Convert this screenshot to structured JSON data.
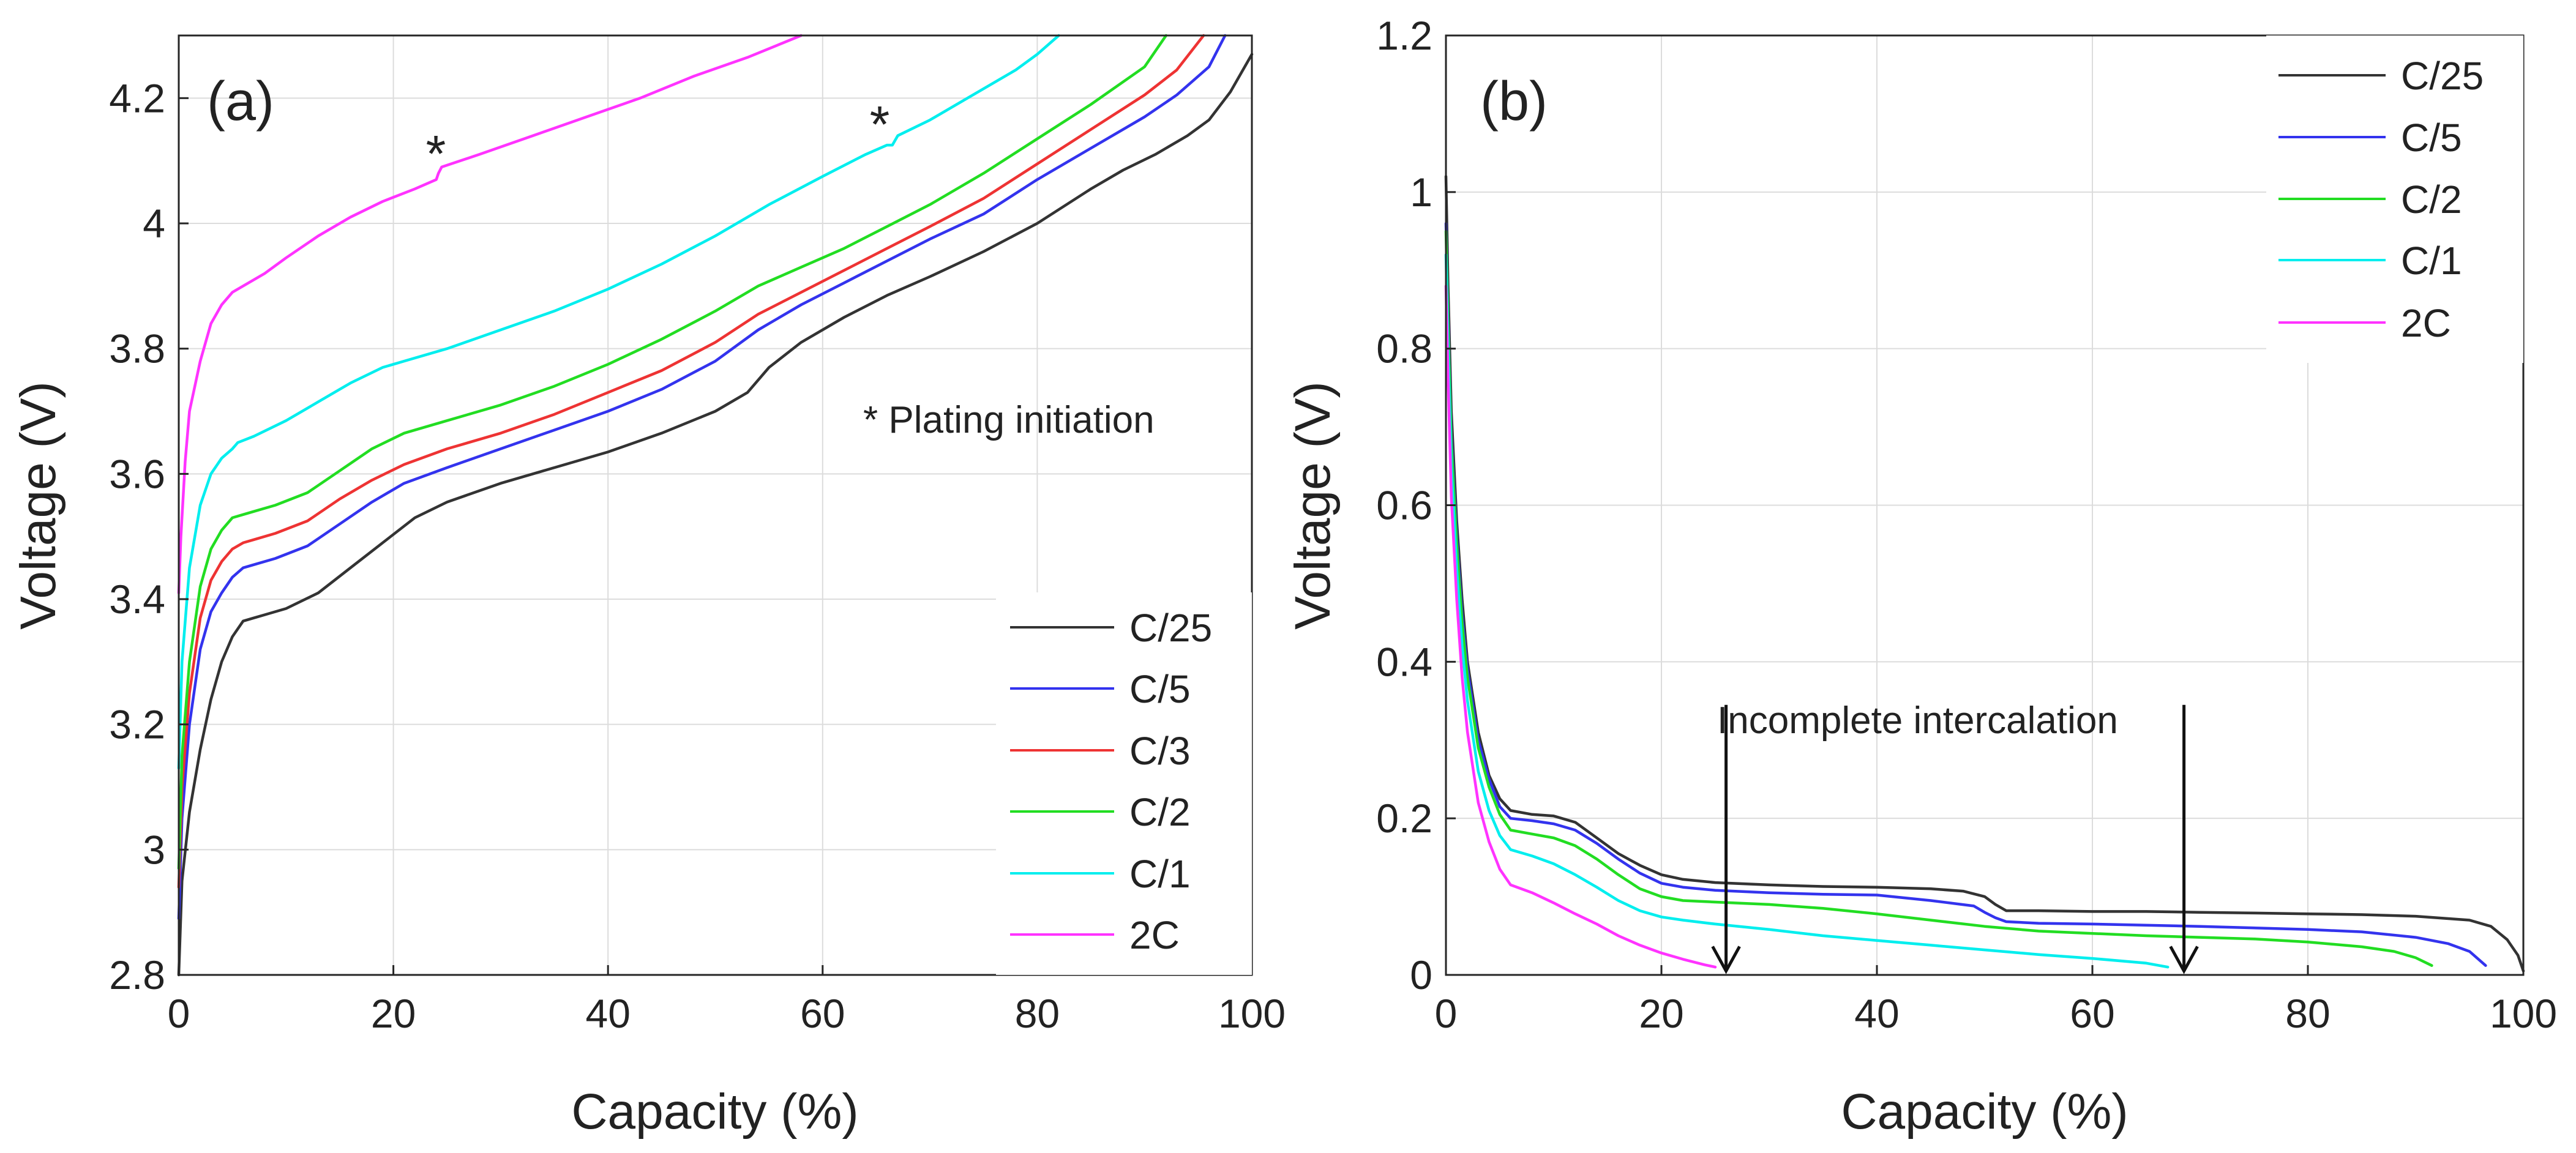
{
  "chart_data": [
    {
      "type": "line",
      "panel_label": "(a)",
      "xlabel": "Capacity (%)",
      "ylabel": "Voltage (V)",
      "xlim": [
        0,
        100
      ],
      "ylim": [
        2.8,
        4.3
      ],
      "xticks": [
        0,
        20,
        40,
        60,
        80,
        100
      ],
      "xtick_labels": [
        "0",
        "20",
        "40",
        "60",
        "80",
        "100"
      ],
      "yticks": [
        2.8,
        3.0,
        3.2,
        3.4,
        3.6,
        3.8,
        4.0,
        4.2
      ],
      "ytick_labels": [
        "2.8",
        "3",
        "3.2",
        "3.4",
        "3.6",
        "3.8",
        "4",
        "4.2"
      ],
      "grid": true,
      "legend_position": "bottom-right",
      "annotations": [
        {
          "text": "* Plating initiation",
          "x": 61.5,
          "y": 3.695
        },
        {
          "text": "*",
          "x": 24.0,
          "y": 4.11,
          "star": true
        },
        {
          "text": "*",
          "x": 65.0,
          "y": 4.15,
          "star": true
        }
      ],
      "series": [
        {
          "name": "C/25",
          "color": "#333333",
          "x": [
            0,
            0.3,
            1,
            2,
            3,
            4,
            5,
            6,
            7,
            8,
            10,
            13,
            16,
            19,
            22,
            25,
            30,
            35,
            40,
            45,
            50,
            53,
            55,
            58,
            62,
            66,
            70,
            75,
            80,
            85,
            88,
            91,
            94,
            96,
            98,
            100
          ],
          "y": [
            2.8,
            2.95,
            3.06,
            3.16,
            3.24,
            3.3,
            3.34,
            3.365,
            3.37,
            3.375,
            3.385,
            3.41,
            3.45,
            3.49,
            3.53,
            3.555,
            3.585,
            3.61,
            3.635,
            3.665,
            3.7,
            3.73,
            3.77,
            3.81,
            3.85,
            3.885,
            3.915,
            3.955,
            4.0,
            4.055,
            4.085,
            4.11,
            4.14,
            4.165,
            4.21,
            4.27
          ]
        },
        {
          "name": "C/5",
          "color": "#3333ee",
          "x": [
            0,
            0.3,
            1,
            2,
            3,
            4,
            5,
            6,
            7,
            9,
            12,
            15,
            18,
            21,
            25,
            30,
            35,
            40,
            45,
            50,
            54,
            58,
            62,
            66,
            70,
            75,
            80,
            85,
            90,
            93,
            96,
            97.5
          ],
          "y": [
            2.89,
            3.05,
            3.2,
            3.32,
            3.38,
            3.41,
            3.435,
            3.45,
            3.455,
            3.465,
            3.485,
            3.52,
            3.555,
            3.585,
            3.61,
            3.64,
            3.67,
            3.7,
            3.735,
            3.78,
            3.83,
            3.87,
            3.905,
            3.94,
            3.975,
            4.015,
            4.07,
            4.12,
            4.17,
            4.205,
            4.25,
            4.3
          ]
        },
        {
          "name": "C/3",
          "color": "#ee3333",
          "x": [
            0,
            0.3,
            1,
            2,
            3,
            4,
            5,
            6,
            7,
            9,
            12,
            15,
            18,
            21,
            25,
            30,
            35,
            40,
            45,
            50,
            54,
            58,
            62,
            66,
            70,
            75,
            80,
            85,
            90,
            93,
            95.5
          ],
          "y": [
            2.94,
            3.1,
            3.25,
            3.37,
            3.43,
            3.46,
            3.48,
            3.49,
            3.495,
            3.505,
            3.525,
            3.56,
            3.59,
            3.615,
            3.64,
            3.665,
            3.695,
            3.73,
            3.765,
            3.81,
            3.855,
            3.89,
            3.925,
            3.96,
            3.995,
            4.04,
            4.095,
            4.15,
            4.205,
            4.245,
            4.3
          ]
        },
        {
          "name": "C/2",
          "color": "#22dd22",
          "x": [
            0,
            0.3,
            1,
            2,
            3,
            4,
            5,
            6,
            7,
            9,
            12,
            15,
            18,
            21,
            25,
            30,
            35,
            40,
            45,
            50,
            54,
            58,
            62,
            66,
            70,
            75,
            80,
            85,
            90,
            92
          ],
          "y": [
            2.97,
            3.15,
            3.3,
            3.42,
            3.48,
            3.51,
            3.53,
            3.535,
            3.54,
            3.55,
            3.57,
            3.605,
            3.64,
            3.665,
            3.685,
            3.71,
            3.74,
            3.775,
            3.815,
            3.86,
            3.9,
            3.93,
            3.96,
            3.995,
            4.03,
            4.08,
            4.135,
            4.19,
            4.25,
            4.3
          ]
        },
        {
          "name": "C/1",
          "color": "#00eeee",
          "x": [
            0,
            0.3,
            1,
            2,
            3,
            4,
            5,
            5.5,
            7,
            10,
            13,
            16,
            19,
            21,
            25,
            30,
            35,
            40,
            45,
            50,
            55,
            60,
            64,
            66,
            66.5,
            67,
            70,
            74,
            78,
            80,
            82
          ],
          "y": [
            3.13,
            3.3,
            3.45,
            3.55,
            3.6,
            3.625,
            3.64,
            3.65,
            3.66,
            3.685,
            3.715,
            3.745,
            3.77,
            3.78,
            3.8,
            3.83,
            3.86,
            3.895,
            3.935,
            3.98,
            4.03,
            4.075,
            4.11,
            4.125,
            4.125,
            4.14,
            4.165,
            4.205,
            4.245,
            4.27,
            4.3
          ]
        },
        {
          "name": "2C",
          "color": "#ff33ff",
          "x": [
            0,
            0.2,
            0.6,
            1,
            2,
            3,
            4,
            5,
            6,
            8,
            10,
            13,
            16,
            19,
            22,
            24,
            24.2,
            24.5,
            28,
            33,
            38,
            43,
            48,
            53,
            58
          ],
          "y": [
            3.41,
            3.5,
            3.62,
            3.7,
            3.78,
            3.84,
            3.87,
            3.89,
            3.9,
            3.92,
            3.945,
            3.98,
            4.01,
            4.035,
            4.055,
            4.07,
            4.08,
            4.09,
            4.11,
            4.14,
            4.17,
            4.2,
            4.235,
            4.265,
            4.3
          ]
        }
      ]
    },
    {
      "type": "line",
      "panel_label": "(b)",
      "xlabel": "Capacity (%)",
      "ylabel": "Voltage (V)",
      "xlim": [
        0,
        100
      ],
      "ylim": [
        0,
        1.2
      ],
      "xticks": [
        0,
        20,
        40,
        60,
        80,
        100
      ],
      "xtick_labels": [
        "0",
        "20",
        "40",
        "60",
        "80",
        "100"
      ],
      "yticks": [
        0,
        0.2,
        0.4,
        0.6,
        0.8,
        1.0,
        1.2
      ],
      "ytick_labels": [
        "0",
        "0.2",
        "0.4",
        "0.6",
        "0.8",
        "1",
        "1.2"
      ],
      "grid": true,
      "legend_position": "top-right",
      "annotations": [
        {
          "text": "Incomplete intercalation",
          "x": 25.6,
          "y": 0.385
        },
        {
          "arrow": true,
          "x": 26.0,
          "y_from": 0.345,
          "y_to": 0.005
        },
        {
          "arrow": true,
          "x": 68.5,
          "y_from": 0.345,
          "y_to": 0.005
        }
      ],
      "series": [
        {
          "name": "C/25",
          "color": "#333333",
          "x": [
            0,
            0.2,
            0.5,
            1,
            1.5,
            2,
            3,
            4,
            5,
            6,
            8,
            10,
            12,
            14,
            16,
            18,
            20,
            22,
            25,
            30,
            35,
            40,
            45,
            48,
            50,
            51,
            52,
            55,
            60,
            65,
            70,
            75,
            80,
            85,
            90,
            95,
            97,
            98.5,
            99.5,
            100
          ],
          "y": [
            1.02,
            0.88,
            0.72,
            0.58,
            0.48,
            0.4,
            0.31,
            0.255,
            0.225,
            0.21,
            0.205,
            0.203,
            0.195,
            0.175,
            0.155,
            0.14,
            0.128,
            0.122,
            0.118,
            0.115,
            0.113,
            0.112,
            0.11,
            0.107,
            0.1,
            0.09,
            0.082,
            0.082,
            0.081,
            0.081,
            0.08,
            0.079,
            0.078,
            0.077,
            0.075,
            0.07,
            0.062,
            0.045,
            0.025,
            0.005
          ]
        },
        {
          "name": "C/5",
          "color": "#3333ee",
          "x": [
            0,
            0.2,
            0.5,
            1,
            1.5,
            2,
            3,
            4,
            5,
            6,
            8,
            10,
            12,
            14,
            16,
            18,
            20,
            22,
            25,
            30,
            35,
            40,
            45,
            49,
            50,
            51,
            52,
            55,
            60,
            70,
            80,
            85,
            90,
            93,
            95,
            96.5
          ],
          "y": [
            0.96,
            0.84,
            0.69,
            0.56,
            0.46,
            0.39,
            0.3,
            0.25,
            0.215,
            0.2,
            0.197,
            0.193,
            0.185,
            0.168,
            0.148,
            0.13,
            0.117,
            0.112,
            0.108,
            0.105,
            0.103,
            0.102,
            0.095,
            0.088,
            0.08,
            0.073,
            0.068,
            0.066,
            0.065,
            0.062,
            0.058,
            0.055,
            0.048,
            0.04,
            0.03,
            0.012
          ]
        },
        {
          "name": "C/2",
          "color": "#22dd22",
          "x": [
            0,
            0.2,
            0.5,
            1,
            1.5,
            2,
            3,
            4,
            5,
            6,
            8,
            10,
            12,
            14,
            16,
            18,
            20,
            22,
            25,
            30,
            35,
            40,
            45,
            50,
            55,
            60,
            65,
            70,
            75,
            80,
            85,
            88,
            90,
            91.5
          ],
          "y": [
            0.95,
            0.83,
            0.68,
            0.55,
            0.45,
            0.38,
            0.29,
            0.24,
            0.205,
            0.185,
            0.18,
            0.175,
            0.165,
            0.148,
            0.128,
            0.11,
            0.1,
            0.095,
            0.093,
            0.09,
            0.085,
            0.078,
            0.07,
            0.062,
            0.056,
            0.053,
            0.05,
            0.048,
            0.046,
            0.042,
            0.036,
            0.03,
            0.022,
            0.012
          ]
        },
        {
          "name": "C/1",
          "color": "#00eeee",
          "x": [
            0,
            0.2,
            0.5,
            1,
            1.5,
            2,
            3,
            4,
            5,
            6,
            8,
            10,
            12,
            14,
            16,
            18,
            20,
            22,
            25,
            30,
            35,
            40,
            45,
            50,
            55,
            60,
            65,
            67
          ],
          "y": [
            0.92,
            0.8,
            0.65,
            0.52,
            0.42,
            0.35,
            0.26,
            0.21,
            0.178,
            0.16,
            0.152,
            0.142,
            0.128,
            0.112,
            0.095,
            0.082,
            0.074,
            0.07,
            0.065,
            0.058,
            0.05,
            0.044,
            0.038,
            0.032,
            0.026,
            0.021,
            0.015,
            0.01
          ]
        },
        {
          "name": "2C",
          "color": "#ff33ff",
          "x": [
            0,
            0.2,
            0.5,
            1,
            1.5,
            2,
            3,
            4,
            5,
            6,
            8,
            10,
            12,
            14,
            16,
            18,
            20,
            22,
            24,
            25
          ],
          "y": [
            0.88,
            0.76,
            0.61,
            0.48,
            0.38,
            0.31,
            0.22,
            0.17,
            0.135,
            0.115,
            0.105,
            0.092,
            0.078,
            0.065,
            0.05,
            0.038,
            0.028,
            0.02,
            0.013,
            0.01
          ]
        }
      ]
    }
  ]
}
